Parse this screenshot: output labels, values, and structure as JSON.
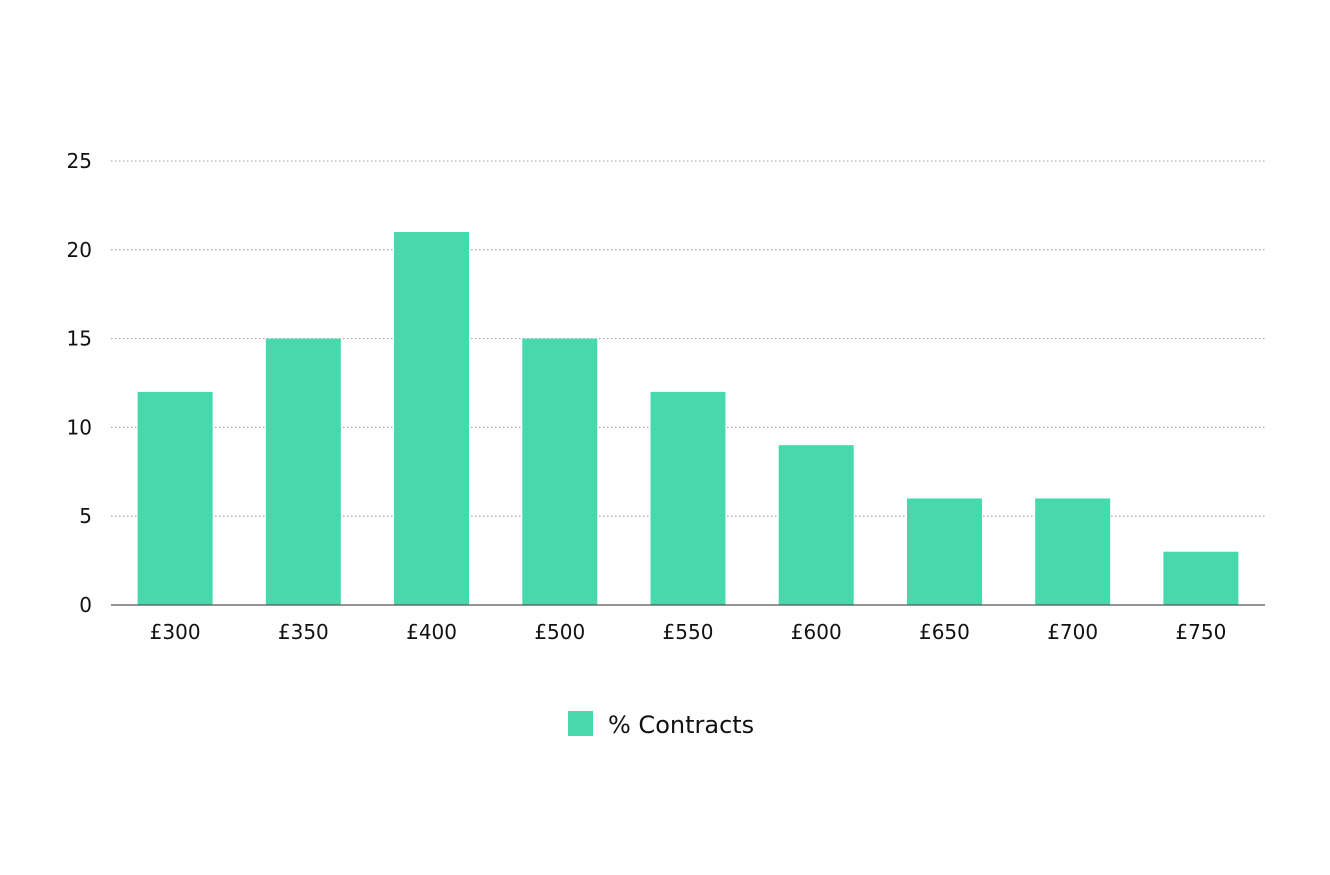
{
  "chart_data": {
    "type": "bar",
    "categories": [
      "£300",
      "£350",
      "£400",
      "£500",
      "£550",
      "£600",
      "£650",
      "£700",
      "£750"
    ],
    "series": [
      {
        "name": "% Contracts",
        "values": [
          12,
          15,
          21,
          15,
          12,
          9,
          6,
          6,
          3
        ],
        "color": "#47d9ab"
      }
    ],
    "title": "",
    "xlabel": "",
    "ylabel": "",
    "ylim": [
      0,
      25
    ],
    "yticks": [
      0,
      5,
      10,
      15,
      20,
      25
    ],
    "grid": true,
    "legend": "bottom-center"
  }
}
